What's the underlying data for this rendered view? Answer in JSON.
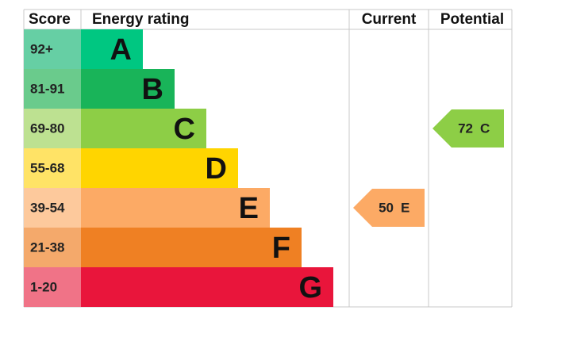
{
  "chart_data": {
    "type": "epc",
    "headers": {
      "score": "Score",
      "rating": "Energy rating",
      "current": "Current",
      "potential": "Potential"
    },
    "bands": [
      {
        "score": "92+",
        "letter": "A",
        "color": "#00c781",
        "score_color": "#66cfa4"
      },
      {
        "score": "81-91",
        "letter": "B",
        "color": "#19b459",
        "score_color": "#6acb8c"
      },
      {
        "score": "69-80",
        "letter": "C",
        "color": "#8dce46",
        "score_color": "#bde191"
      },
      {
        "score": "55-68",
        "letter": "D",
        "color": "#ffd500",
        "score_color": "#ffe366"
      },
      {
        "score": "39-54",
        "letter": "E",
        "color": "#fcaa65",
        "score_color": "#fdc99c"
      },
      {
        "score": "21-38",
        "letter": "F",
        "color": "#ef8023",
        "score_color": "#f4a96b"
      },
      {
        "score": "1-20",
        "letter": "G",
        "color": "#e9153b",
        "score_color": "#f07387"
      }
    ],
    "current": {
      "value": 50,
      "rating": "E"
    },
    "potential": {
      "value": 72,
      "rating": "C"
    }
  }
}
